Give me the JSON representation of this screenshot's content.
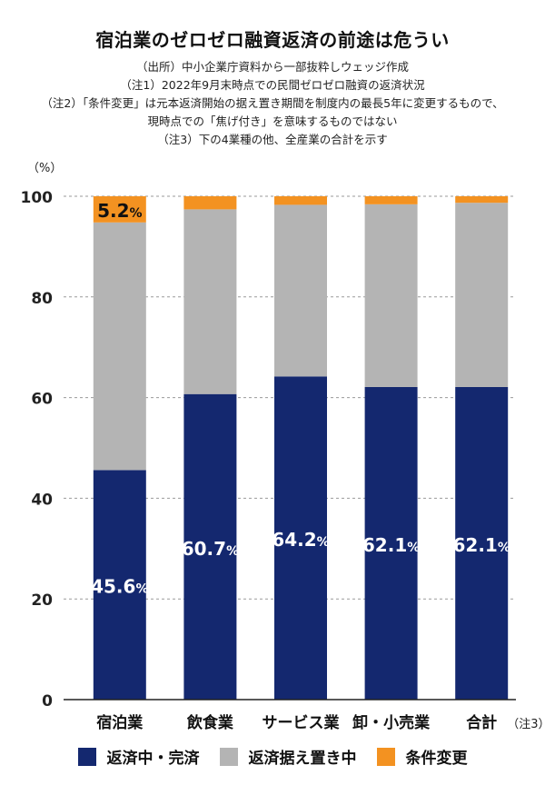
{
  "title": "宿泊業のゼロゼロ融資返済の前途は危うい",
  "notes": [
    "（出所）中小企業庁資料から一部抜粋しウェッジ作成",
    "（注1）2022年9月末時点での民間ゼロゼロ融資の返済状況",
    "（注2）「条件変更」は元本返済開始の据え置き期間を制度内の最長5年に変更するもので、",
    "現時点での「焦げ付き」を意味するものではない",
    "（注3）下の4業種の他、全産業の合計を示す"
  ],
  "colors": {
    "navy": "#14286f",
    "gray": "#b4b4b4",
    "orange": "#f39221"
  },
  "chart_data": {
    "type": "bar",
    "stacked": true,
    "ylabel": "（%）",
    "ylim": [
      0,
      100
    ],
    "yticks": [
      "0",
      "20",
      "40",
      "60",
      "80",
      "100"
    ],
    "categories": [
      "宿泊業",
      "飲食業",
      "サービス業",
      "卸・小売業",
      "合計"
    ],
    "category_note": "（注3）",
    "series": [
      {
        "name": "返済中・完済",
        "values": [
          45.6,
          60.7,
          64.2,
          62.1,
          62.1
        ],
        "labels": [
          "45.6",
          "60.7",
          "64.2",
          "62.1",
          "62.1"
        ]
      },
      {
        "name": "返済据え置き中",
        "values": [
          49.2,
          36.7,
          34.1,
          36.3,
          36.6
        ]
      },
      {
        "name": "条件変更",
        "values": [
          5.2,
          2.6,
          1.7,
          1.6,
          1.3
        ],
        "labels": [
          "5.2",
          null,
          null,
          null,
          null
        ]
      }
    ],
    "label_unit": "%"
  }
}
